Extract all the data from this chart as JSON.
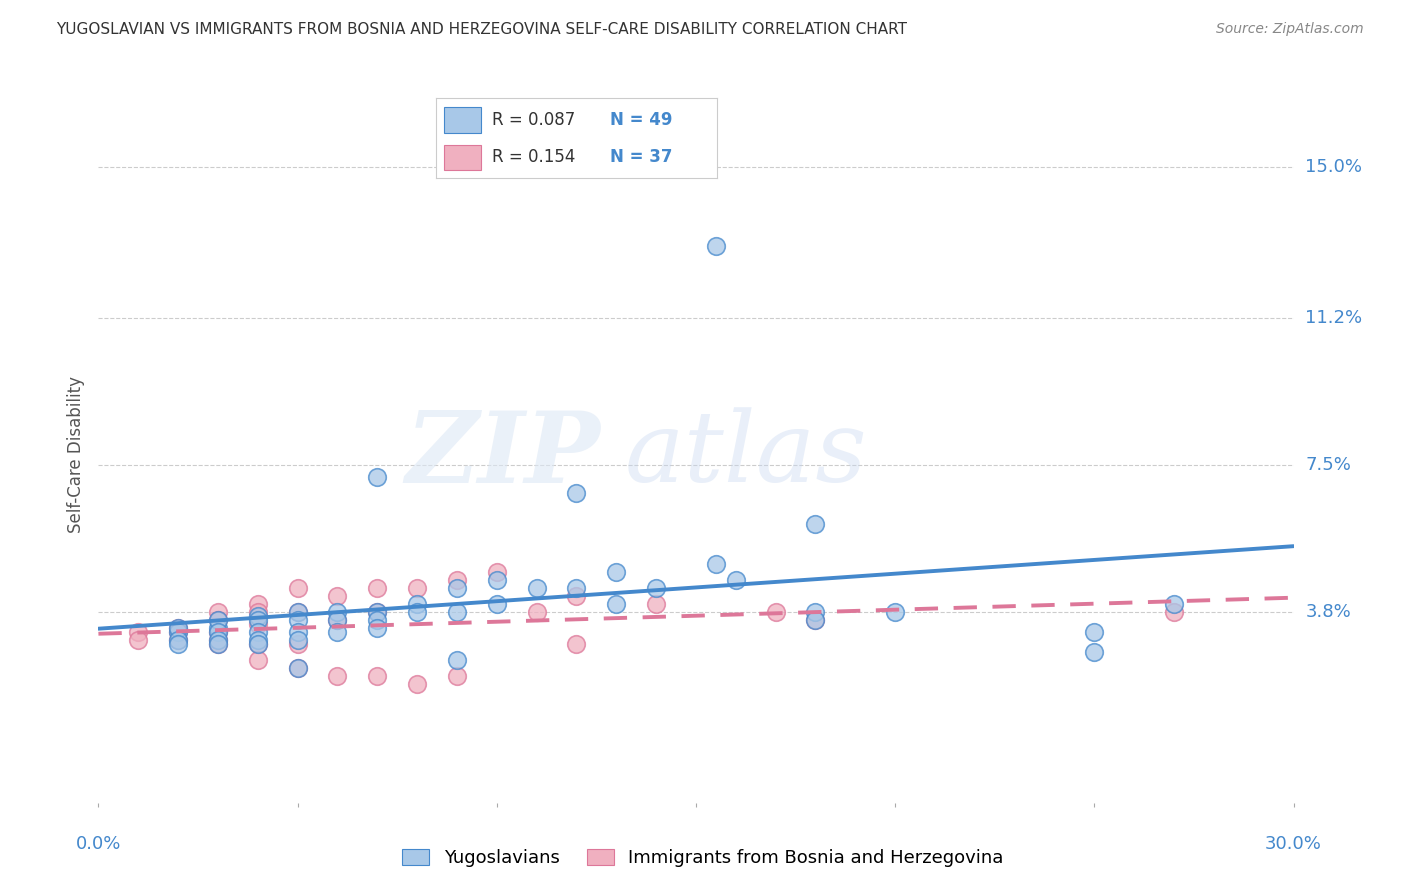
{
  "title": "YUGOSLAVIAN VS IMMIGRANTS FROM BOSNIA AND HERZEGOVINA SELF-CARE DISABILITY CORRELATION CHART",
  "source": "Source: ZipAtlas.com",
  "ylabel": "Self-Care Disability",
  "yticks": [
    "15.0%",
    "11.2%",
    "7.5%",
    "3.8%"
  ],
  "ytick_vals": [
    0.15,
    0.112,
    0.075,
    0.038
  ],
  "xlim": [
    0.0,
    0.3
  ],
  "ylim": [
    -0.01,
    0.165
  ],
  "legend1_r": "0.087",
  "legend1_n": "49",
  "legend2_r": "0.154",
  "legend2_n": "37",
  "legend1_label": "Yugoslavians",
  "legend2_label": "Immigrants from Bosnia and Herzegovina",
  "blue_color": "#a8c8e8",
  "pink_color": "#f0b0c0",
  "blue_line_color": "#4488cc",
  "pink_line_color": "#dd7799",
  "background_color": "#ffffff",
  "grid_color": "#cccccc",
  "title_color": "#333333",
  "right_label_color": "#4488cc",
  "blue_scatter_x": [
    0.02,
    0.02,
    0.02,
    0.02,
    0.03,
    0.03,
    0.03,
    0.03,
    0.03,
    0.04,
    0.04,
    0.04,
    0.04,
    0.04,
    0.05,
    0.05,
    0.05,
    0.05,
    0.06,
    0.06,
    0.06,
    0.07,
    0.07,
    0.07,
    0.08,
    0.08,
    0.09,
    0.09,
    0.1,
    0.1,
    0.11,
    0.12,
    0.13,
    0.13,
    0.14,
    0.155,
    0.16,
    0.18,
    0.2,
    0.25,
    0.27,
    0.155,
    0.09,
    0.18,
    0.25,
    0.18,
    0.12,
    0.07,
    0.05
  ],
  "blue_scatter_y": [
    0.033,
    0.034,
    0.031,
    0.03,
    0.034,
    0.036,
    0.033,
    0.031,
    0.03,
    0.037,
    0.036,
    0.033,
    0.031,
    0.03,
    0.038,
    0.036,
    0.033,
    0.031,
    0.038,
    0.036,
    0.033,
    0.038,
    0.036,
    0.034,
    0.04,
    0.038,
    0.044,
    0.038,
    0.046,
    0.04,
    0.044,
    0.044,
    0.048,
    0.04,
    0.044,
    0.05,
    0.046,
    0.038,
    0.038,
    0.033,
    0.04,
    0.13,
    0.026,
    0.036,
    0.028,
    0.06,
    0.068,
    0.072,
    0.024
  ],
  "pink_scatter_x": [
    0.01,
    0.01,
    0.02,
    0.02,
    0.02,
    0.03,
    0.03,
    0.03,
    0.03,
    0.04,
    0.04,
    0.04,
    0.04,
    0.05,
    0.05,
    0.05,
    0.06,
    0.06,
    0.07,
    0.07,
    0.08,
    0.09,
    0.1,
    0.12,
    0.14,
    0.17,
    0.27,
    0.03,
    0.04,
    0.05,
    0.06,
    0.07,
    0.08,
    0.09,
    0.11,
    0.12,
    0.18
  ],
  "pink_scatter_y": [
    0.033,
    0.031,
    0.034,
    0.033,
    0.031,
    0.038,
    0.036,
    0.033,
    0.031,
    0.04,
    0.038,
    0.035,
    0.03,
    0.044,
    0.038,
    0.03,
    0.042,
    0.036,
    0.044,
    0.038,
    0.044,
    0.046,
    0.048,
    0.042,
    0.04,
    0.038,
    0.038,
    0.03,
    0.026,
    0.024,
    0.022,
    0.022,
    0.02,
    0.022,
    0.038,
    0.03,
    0.036
  ]
}
